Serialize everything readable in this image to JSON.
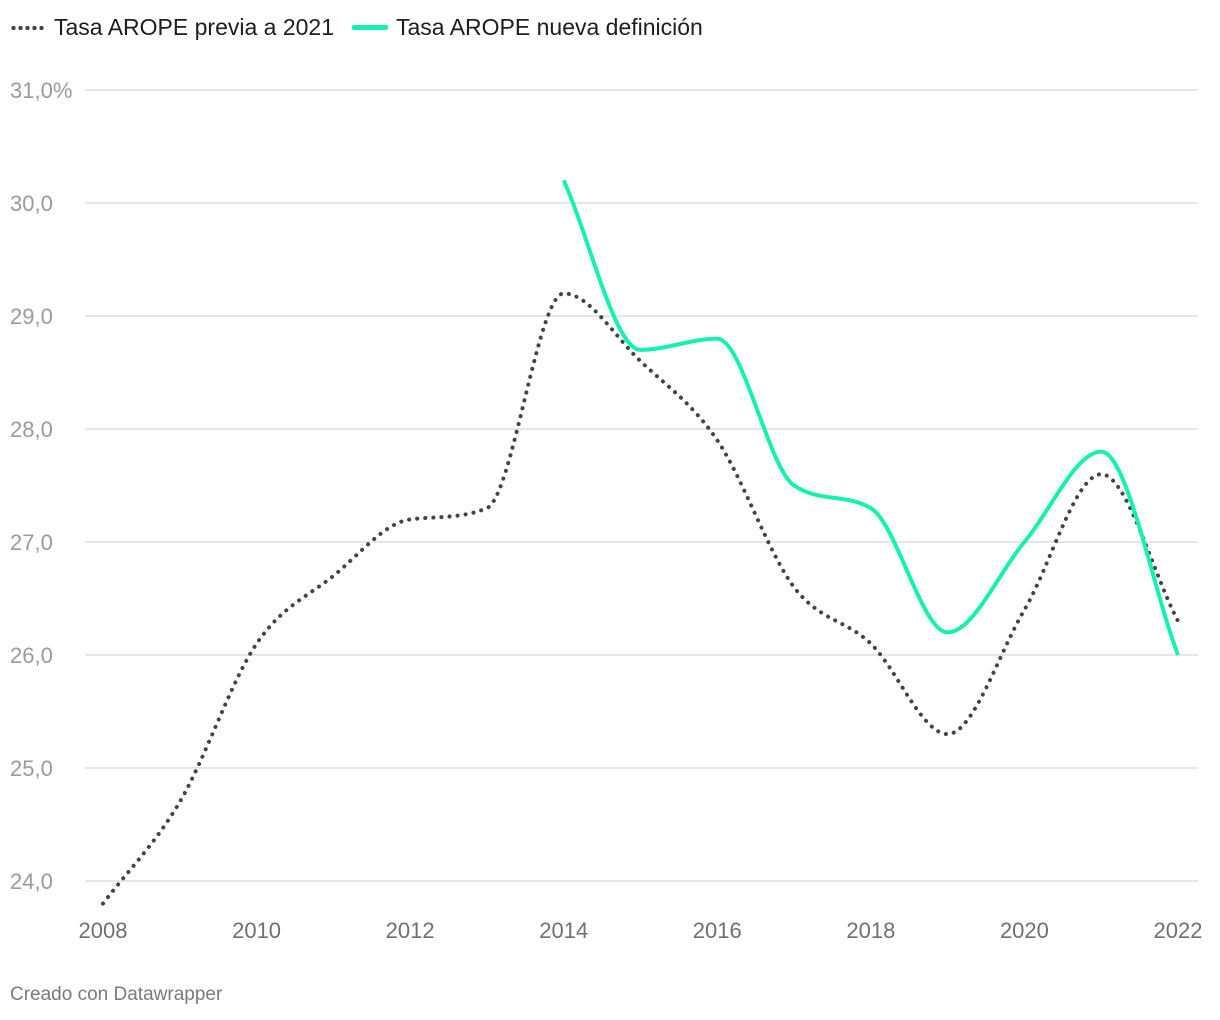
{
  "legend": {
    "series_old": "Tasa AROPE previa a 2021",
    "series_new": "Tasa AROPE nueva definición"
  },
  "footer": "Creado con Datawrapper",
  "colors": {
    "series_old": "#444448",
    "series_new": "#16f0b0",
    "grid": "#dddddd"
  },
  "chart_data": {
    "type": "line",
    "xlim": [
      2008,
      2022
    ],
    "ylim": [
      23.8,
      31.0
    ],
    "y_ticks": [
      {
        "value": 31,
        "label": "31,0%"
      },
      {
        "value": 30,
        "label": "30,0"
      },
      {
        "value": 29,
        "label": "29,0"
      },
      {
        "value": 28,
        "label": "28,0"
      },
      {
        "value": 27,
        "label": "27,0"
      },
      {
        "value": 26,
        "label": "26,0"
      },
      {
        "value": 25,
        "label": "25,0"
      },
      {
        "value": 24,
        "label": "24,0"
      }
    ],
    "x_ticks": [
      {
        "value": 2008,
        "label": "2008"
      },
      {
        "value": 2010,
        "label": "2010"
      },
      {
        "value": 2012,
        "label": "2012"
      },
      {
        "value": 2014,
        "label": "2014"
      },
      {
        "value": 2016,
        "label": "2016"
      },
      {
        "value": 2018,
        "label": "2018"
      },
      {
        "value": 2020,
        "label": "2020"
      },
      {
        "value": 2022,
        "label": "2022"
      }
    ],
    "series": [
      {
        "name": "Tasa AROPE previa a 2021",
        "style": "dotted",
        "x": [
          2008,
          2009,
          2010,
          2011,
          2012,
          2013,
          2014,
          2015,
          2016,
          2017,
          2018,
          2019,
          2020,
          2021,
          2022
        ],
        "values": [
          23.8,
          24.7,
          26.1,
          26.7,
          27.2,
          27.3,
          29.2,
          28.6,
          27.9,
          26.6,
          26.1,
          25.3,
          26.4,
          27.6,
          26.3
        ]
      },
      {
        "name": "Tasa AROPE nueva definición",
        "style": "solid",
        "x": [
          2014,
          2015,
          2016,
          2017,
          2018,
          2019,
          2020,
          2021,
          2022
        ],
        "values": [
          30.2,
          28.7,
          28.8,
          27.5,
          27.3,
          26.2,
          27.0,
          27.8,
          26.0
        ]
      }
    ],
    "grid": true,
    "legend_position": "top-left"
  }
}
